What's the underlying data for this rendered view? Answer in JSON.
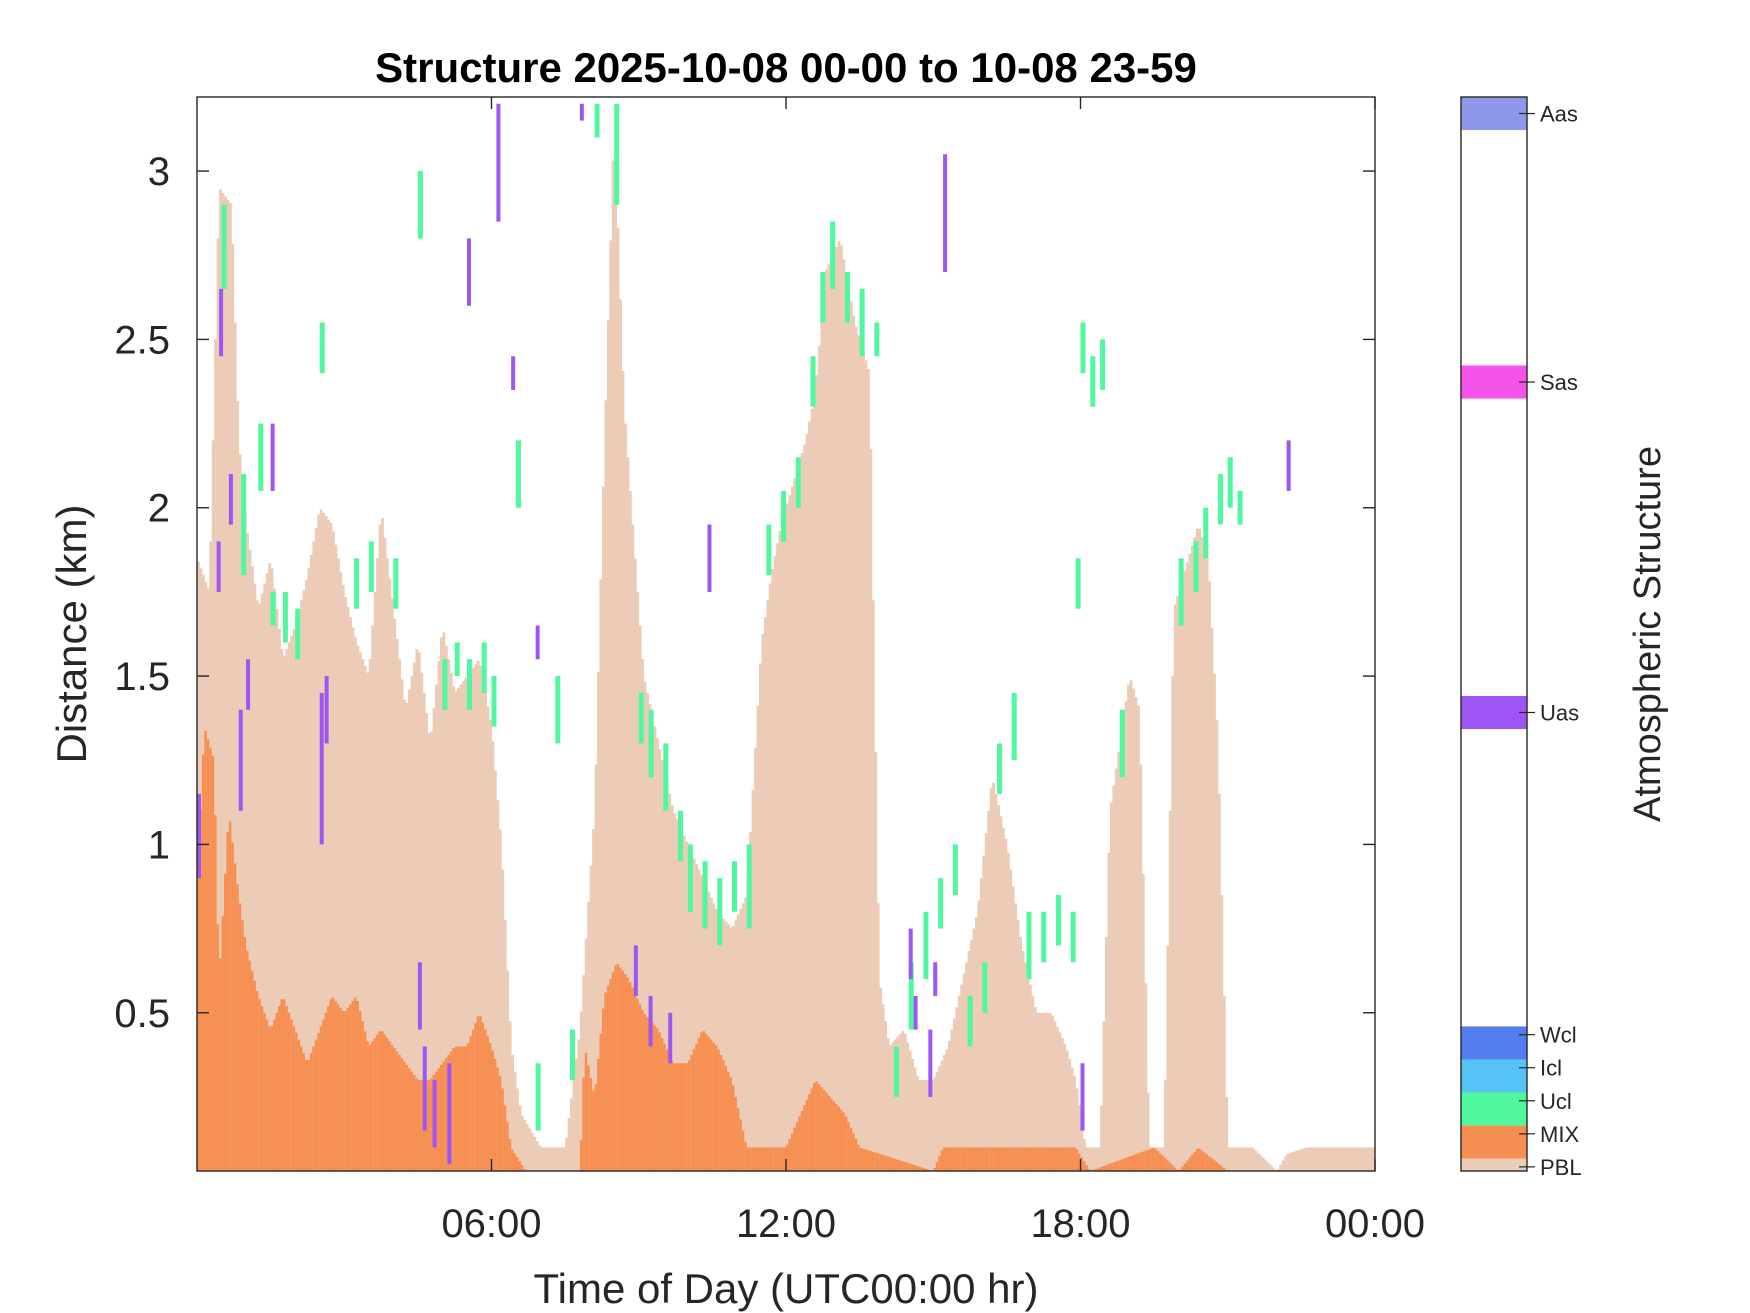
{
  "chart_data": {
    "type": "heatmap",
    "title": "Structure 2025-10-08 00-00 to 10-08 23-59",
    "xlabel": "Time of Day (UTC00:00 hr)",
    "ylabel": "Distance (km)",
    "xlim": [
      0,
      24
    ],
    "ylim": [
      0.03,
      3.22
    ],
    "x_ticks": [
      {
        "value": 6,
        "label": "06:00"
      },
      {
        "value": 12,
        "label": "12:00"
      },
      {
        "value": 18,
        "label": "18:00"
      },
      {
        "value": 24,
        "label": "00:00"
      }
    ],
    "y_ticks": [
      {
        "value": 0.5,
        "label": "0.5"
      },
      {
        "value": 1,
        "label": "1"
      },
      {
        "value": 1.5,
        "label": "1.5"
      },
      {
        "value": 2,
        "label": "2"
      },
      {
        "value": 2.5,
        "label": "2.5"
      },
      {
        "value": 3,
        "label": "3"
      }
    ],
    "colorbar": {
      "title": "Atmospheric Structure",
      "categories": [
        {
          "code": "PBL",
          "color": "#ecccb6"
        },
        {
          "code": "MIX",
          "color": "#f78f52"
        },
        {
          "code": "Ucl",
          "color": "#4ff89f"
        },
        {
          "code": "Icl",
          "color": "#55c3f5"
        },
        {
          "code": "Wcl",
          "color": "#527ef2"
        },
        {
          "code": "Uas",
          "color": "#9d55f5"
        },
        {
          "code": "Sas",
          "color": "#f653ea"
        },
        {
          "code": "Aas",
          "color": "#8e97ea"
        }
      ]
    },
    "pbl_top_km": [
      [
        0.0,
        1.85
      ],
      [
        0.25,
        1.75
      ],
      [
        0.45,
        2.95
      ],
      [
        0.7,
        2.9
      ],
      [
        0.85,
        2.2
      ],
      [
        1.0,
        1.95
      ],
      [
        1.25,
        1.7
      ],
      [
        1.5,
        1.85
      ],
      [
        1.75,
        1.55
      ],
      [
        2.0,
        1.65
      ],
      [
        2.25,
        1.8
      ],
      [
        2.5,
        2.0
      ],
      [
        2.75,
        1.95
      ],
      [
        3.0,
        1.75
      ],
      [
        3.25,
        1.6
      ],
      [
        3.5,
        1.5
      ],
      [
        3.75,
        2.0
      ],
      [
        4.0,
        1.7
      ],
      [
        4.25,
        1.4
      ],
      [
        4.5,
        1.6
      ],
      [
        4.75,
        1.3
      ],
      [
        5.0,
        1.65
      ],
      [
        5.25,
        1.45
      ],
      [
        5.5,
        1.5
      ],
      [
        5.75,
        1.55
      ],
      [
        6.0,
        1.35
      ],
      [
        6.2,
        1.0
      ],
      [
        6.4,
        0.4
      ],
      [
        6.6,
        0.2
      ],
      [
        7.0,
        0.1
      ],
      [
        7.5,
        0.1
      ],
      [
        7.8,
        0.45
      ],
      [
        8.1,
        1.1
      ],
      [
        8.3,
        2.2
      ],
      [
        8.5,
        3.15
      ],
      [
        8.7,
        2.3
      ],
      [
        8.9,
        1.9
      ],
      [
        9.1,
        1.5
      ],
      [
        9.4,
        1.3
      ],
      [
        9.7,
        1.1
      ],
      [
        10.0,
        1.0
      ],
      [
        10.3,
        0.9
      ],
      [
        10.6,
        0.8
      ],
      [
        10.9,
        0.75
      ],
      [
        11.2,
        0.85
      ],
      [
        11.5,
        1.6
      ],
      [
        11.7,
        1.8
      ],
      [
        11.9,
        1.95
      ],
      [
        12.1,
        2.05
      ],
      [
        12.4,
        2.2
      ],
      [
        12.6,
        2.35
      ],
      [
        12.8,
        2.7
      ],
      [
        13.1,
        2.8
      ],
      [
        13.4,
        2.55
      ],
      [
        13.7,
        2.4
      ],
      [
        13.9,
        0.6
      ],
      [
        14.1,
        0.4
      ],
      [
        14.4,
        0.45
      ],
      [
        14.7,
        0.3
      ],
      [
        15.0,
        0.3
      ],
      [
        15.3,
        0.4
      ],
      [
        15.6,
        0.6
      ],
      [
        15.9,
        0.8
      ],
      [
        16.2,
        1.2
      ],
      [
        16.5,
        1.0
      ],
      [
        16.8,
        0.7
      ],
      [
        17.1,
        0.5
      ],
      [
        17.4,
        0.5
      ],
      [
        17.7,
        0.4
      ],
      [
        17.9,
        0.3
      ],
      [
        18.1,
        0.1
      ],
      [
        18.4,
        0.1
      ],
      [
        18.6,
        1.1
      ],
      [
        18.8,
        1.3
      ],
      [
        19.0,
        1.5
      ],
      [
        19.2,
        1.4
      ],
      [
        19.4,
        0.1
      ],
      [
        19.7,
        0.1
      ],
      [
        19.9,
        1.7
      ],
      [
        20.1,
        1.8
      ],
      [
        20.4,
        1.95
      ],
      [
        20.6,
        1.85
      ],
      [
        20.8,
        1.3
      ],
      [
        21.0,
        0.1
      ],
      [
        21.5,
        0.1
      ],
      [
        22.0,
        0.03
      ],
      [
        22.2,
        0.08
      ],
      [
        22.6,
        0.1
      ],
      [
        23.0,
        0.1
      ],
      [
        23.6,
        0.1
      ],
      [
        24.0,
        0.1
      ]
    ],
    "mix_top_km": [
      [
        0.0,
        0.85
      ],
      [
        0.15,
        1.35
      ],
      [
        0.35,
        1.25
      ],
      [
        0.45,
        0.6
      ],
      [
        0.65,
        1.1
      ],
      [
        0.85,
        0.85
      ],
      [
        1.0,
        0.7
      ],
      [
        1.25,
        0.55
      ],
      [
        1.5,
        0.45
      ],
      [
        1.75,
        0.55
      ],
      [
        2.0,
        0.45
      ],
      [
        2.25,
        0.35
      ],
      [
        2.5,
        0.45
      ],
      [
        2.75,
        0.55
      ],
      [
        3.0,
        0.5
      ],
      [
        3.25,
        0.55
      ],
      [
        3.5,
        0.4
      ],
      [
        3.75,
        0.45
      ],
      [
        4.0,
        0.4
      ],
      [
        4.25,
        0.35
      ],
      [
        4.5,
        0.3
      ],
      [
        4.75,
        0.3
      ],
      [
        5.0,
        0.35
      ],
      [
        5.25,
        0.4
      ],
      [
        5.5,
        0.4
      ],
      [
        5.75,
        0.5
      ],
      [
        6.0,
        0.4
      ],
      [
        6.2,
        0.3
      ],
      [
        6.4,
        0.1
      ],
      [
        6.7,
        0.03
      ],
      [
        7.8,
        0.03
      ],
      [
        7.9,
        0.4
      ],
      [
        8.1,
        0.25
      ],
      [
        8.3,
        0.55
      ],
      [
        8.55,
        0.65
      ],
      [
        8.8,
        0.6
      ],
      [
        9.1,
        0.5
      ],
      [
        9.4,
        0.45
      ],
      [
        9.7,
        0.35
      ],
      [
        10.0,
        0.35
      ],
      [
        10.3,
        0.45
      ],
      [
        10.6,
        0.4
      ],
      [
        10.9,
        0.3
      ],
      [
        11.2,
        0.1
      ],
      [
        12.0,
        0.1
      ],
      [
        12.3,
        0.2
      ],
      [
        12.6,
        0.3
      ],
      [
        12.9,
        0.25
      ],
      [
        13.2,
        0.2
      ],
      [
        13.5,
        0.1
      ],
      [
        15.0,
        0.03
      ],
      [
        15.2,
        0.1
      ],
      [
        17.9,
        0.1
      ],
      [
        18.2,
        0.03
      ],
      [
        19.5,
        0.1
      ],
      [
        20.0,
        0.03
      ],
      [
        20.4,
        0.1
      ],
      [
        21.0,
        0.03
      ],
      [
        24.0,
        0.03
      ]
    ],
    "ucl_segments_km": [
      [
        0.5,
        2.65,
        2.9
      ],
      [
        0.9,
        1.8,
        2.1
      ],
      [
        1.25,
        2.05,
        2.25
      ],
      [
        1.5,
        1.65,
        1.75
      ],
      [
        1.75,
        1.6,
        1.75
      ],
      [
        2.0,
        1.55,
        1.7
      ],
      [
        2.5,
        2.4,
        2.55
      ],
      [
        3.2,
        1.7,
        1.85
      ],
      [
        3.5,
        1.75,
        1.9
      ],
      [
        4.0,
        1.7,
        1.85
      ],
      [
        4.5,
        2.8,
        3.0
      ],
      [
        5.0,
        1.4,
        1.55
      ],
      [
        5.25,
        1.5,
        1.6
      ],
      [
        5.5,
        1.4,
        1.55
      ],
      [
        5.8,
        1.45,
        1.6
      ],
      [
        6.0,
        1.35,
        1.5
      ],
      [
        6.5,
        2.0,
        2.2
      ],
      [
        6.9,
        0.15,
        0.35
      ],
      [
        7.3,
        1.3,
        1.5
      ],
      [
        7.6,
        0.3,
        0.45
      ],
      [
        8.1,
        3.1,
        3.2
      ],
      [
        8.5,
        2.9,
        3.2
      ],
      [
        9.0,
        1.3,
        1.45
      ],
      [
        9.2,
        1.2,
        1.4
      ],
      [
        9.5,
        1.1,
        1.3
      ],
      [
        9.8,
        0.95,
        1.1
      ],
      [
        10.0,
        0.8,
        1.0
      ],
      [
        10.3,
        0.75,
        0.95
      ],
      [
        10.6,
        0.7,
        0.9
      ],
      [
        10.9,
        0.8,
        0.95
      ],
      [
        11.2,
        0.75,
        1.0
      ],
      [
        11.6,
        1.8,
        1.95
      ],
      [
        11.9,
        1.9,
        2.05
      ],
      [
        12.2,
        2.0,
        2.15
      ],
      [
        12.5,
        2.3,
        2.45
      ],
      [
        12.7,
        2.55,
        2.7
      ],
      [
        12.9,
        2.65,
        2.85
      ],
      [
        13.2,
        2.55,
        2.7
      ],
      [
        13.5,
        2.45,
        2.65
      ],
      [
        13.8,
        2.45,
        2.55
      ],
      [
        14.2,
        0.25,
        0.4
      ],
      [
        14.5,
        0.45,
        0.65
      ],
      [
        14.8,
        0.6,
        0.8
      ],
      [
        15.1,
        0.75,
        0.9
      ],
      [
        15.4,
        0.85,
        1.0
      ],
      [
        15.7,
        0.4,
        0.55
      ],
      [
        16.0,
        0.5,
        0.65
      ],
      [
        16.3,
        1.15,
        1.3
      ],
      [
        16.6,
        1.25,
        1.45
      ],
      [
        16.9,
        0.6,
        0.8
      ],
      [
        17.2,
        0.65,
        0.8
      ],
      [
        17.5,
        0.7,
        0.85
      ],
      [
        17.8,
        0.65,
        0.8
      ],
      [
        17.9,
        1.7,
        1.85
      ],
      [
        18.0,
        2.4,
        2.55
      ],
      [
        18.2,
        2.3,
        2.45
      ],
      [
        18.4,
        2.35,
        2.5
      ],
      [
        18.8,
        1.2,
        1.4
      ],
      [
        20.0,
        1.65,
        1.85
      ],
      [
        20.3,
        1.75,
        1.9
      ],
      [
        20.5,
        1.85,
        2.0
      ],
      [
        20.8,
        1.95,
        2.1
      ],
      [
        21.0,
        2.0,
        2.15
      ],
      [
        21.2,
        1.95,
        2.05
      ]
    ],
    "uas_segments_km": [
      [
        0.0,
        0.9,
        1.15
      ],
      [
        0.4,
        1.75,
        1.9
      ],
      [
        0.45,
        2.45,
        2.65
      ],
      [
        0.65,
        1.95,
        2.1
      ],
      [
        0.85,
        1.1,
        1.4
      ],
      [
        1.0,
        1.4,
        1.55
      ],
      [
        1.5,
        2.05,
        2.25
      ],
      [
        2.5,
        1.0,
        1.45
      ],
      [
        2.6,
        1.3,
        1.5
      ],
      [
        4.5,
        0.45,
        0.65
      ],
      [
        4.6,
        0.15,
        0.4
      ],
      [
        4.8,
        0.1,
        0.3
      ],
      [
        5.1,
        0.05,
        0.35
      ],
      [
        5.5,
        2.6,
        2.8
      ],
      [
        6.1,
        2.85,
        3.2
      ],
      [
        6.4,
        2.35,
        2.45
      ],
      [
        6.9,
        1.55,
        1.65
      ],
      [
        7.8,
        3.15,
        3.2
      ],
      [
        8.9,
        0.55,
        0.7
      ],
      [
        9.2,
        0.4,
        0.55
      ],
      [
        9.6,
        0.35,
        0.5
      ],
      [
        10.4,
        1.75,
        1.95
      ],
      [
        14.5,
        0.6,
        0.75
      ],
      [
        14.6,
        0.45,
        0.55
      ],
      [
        14.9,
        0.25,
        0.45
      ],
      [
        15.0,
        0.55,
        0.65
      ],
      [
        15.2,
        2.7,
        3.05
      ],
      [
        18.0,
        0.15,
        0.35
      ],
      [
        22.2,
        2.05,
        2.2
      ]
    ]
  }
}
